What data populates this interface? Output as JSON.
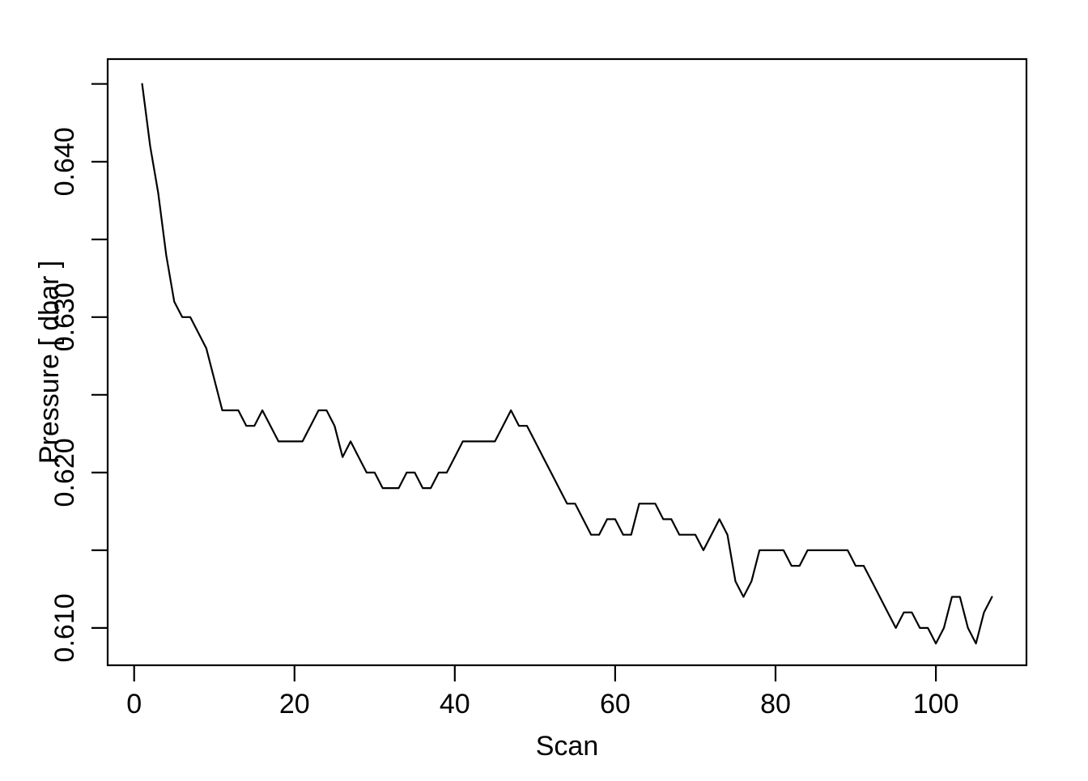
{
  "figure": {
    "background_color": "#ffffff",
    "foreground_color": "#000000",
    "description": "R base-graphics line plot of pressure versus scan number"
  },
  "chart_data": {
    "type": "line",
    "title": "",
    "xlabel": "Scan",
    "ylabel": "Pressure [ dbar ]",
    "grid": false,
    "legend": null,
    "line_color": "#000000",
    "xlim": [
      -3.3,
      111.3
    ],
    "ylim": [
      0.6076,
      0.6466
    ],
    "x_ticks": [
      {
        "v": 0,
        "label": "0"
      },
      {
        "v": 20,
        "label": "20"
      },
      {
        "v": 40,
        "label": "40"
      },
      {
        "v": 60,
        "label": "60"
      },
      {
        "v": 80,
        "label": "80"
      },
      {
        "v": 100,
        "label": "100"
      }
    ],
    "y_ticks": [
      {
        "v": 0.61,
        "label": "0.610"
      },
      {
        "v": 0.615,
        "label": ""
      },
      {
        "v": 0.62,
        "label": "0.620"
      },
      {
        "v": 0.625,
        "label": ""
      },
      {
        "v": 0.63,
        "label": "0.630"
      },
      {
        "v": 0.635,
        "label": ""
      },
      {
        "v": 0.64,
        "label": "0.640"
      },
      {
        "v": 0.645,
        "label": ""
      }
    ],
    "x": [
      1,
      2,
      3,
      4,
      5,
      6,
      7,
      8,
      9,
      10,
      11,
      12,
      13,
      14,
      15,
      16,
      17,
      18,
      19,
      20,
      21,
      22,
      23,
      24,
      25,
      26,
      27,
      28,
      29,
      30,
      31,
      32,
      33,
      34,
      35,
      36,
      37,
      38,
      39,
      40,
      41,
      42,
      43,
      44,
      45,
      46,
      47,
      48,
      49,
      50,
      51,
      52,
      53,
      54,
      55,
      56,
      57,
      58,
      59,
      60,
      61,
      62,
      63,
      64,
      65,
      66,
      67,
      68,
      69,
      70,
      71,
      72,
      73,
      74,
      75,
      76,
      77,
      78,
      79,
      80,
      81,
      82,
      83,
      84,
      85,
      86,
      87,
      88,
      89,
      90,
      91,
      92,
      93,
      94,
      95,
      96,
      97,
      98,
      99,
      100,
      101,
      102,
      103,
      104,
      105,
      106,
      107
    ],
    "series": [
      {
        "name": "Pressure",
        "values": [
          0.645,
          0.641,
          0.638,
          0.634,
          0.631,
          0.63,
          0.63,
          0.629,
          0.628,
          0.626,
          0.624,
          0.624,
          0.624,
          0.623,
          0.623,
          0.624,
          0.623,
          0.622,
          0.622,
          0.622,
          0.622,
          0.623,
          0.624,
          0.624,
          0.623,
          0.621,
          0.622,
          0.621,
          0.62,
          0.62,
          0.619,
          0.619,
          0.619,
          0.62,
          0.62,
          0.619,
          0.619,
          0.62,
          0.62,
          0.621,
          0.622,
          0.622,
          0.622,
          0.622,
          0.622,
          0.623,
          0.624,
          0.623,
          0.623,
          0.622,
          0.621,
          0.62,
          0.619,
          0.618,
          0.618,
          0.617,
          0.616,
          0.616,
          0.617,
          0.617,
          0.616,
          0.616,
          0.618,
          0.618,
          0.618,
          0.617,
          0.617,
          0.616,
          0.616,
          0.616,
          0.615,
          0.616,
          0.617,
          0.616,
          0.613,
          0.612,
          0.613,
          0.615,
          0.615,
          0.615,
          0.615,
          0.614,
          0.614,
          0.615,
          0.615,
          0.615,
          0.615,
          0.615,
          0.615,
          0.614,
          0.614,
          0.613,
          0.612,
          0.611,
          0.61,
          0.611,
          0.611,
          0.61,
          0.61,
          0.609,
          0.61,
          0.612,
          0.612,
          0.61,
          0.609,
          0.611,
          0.612
        ]
      }
    ]
  }
}
